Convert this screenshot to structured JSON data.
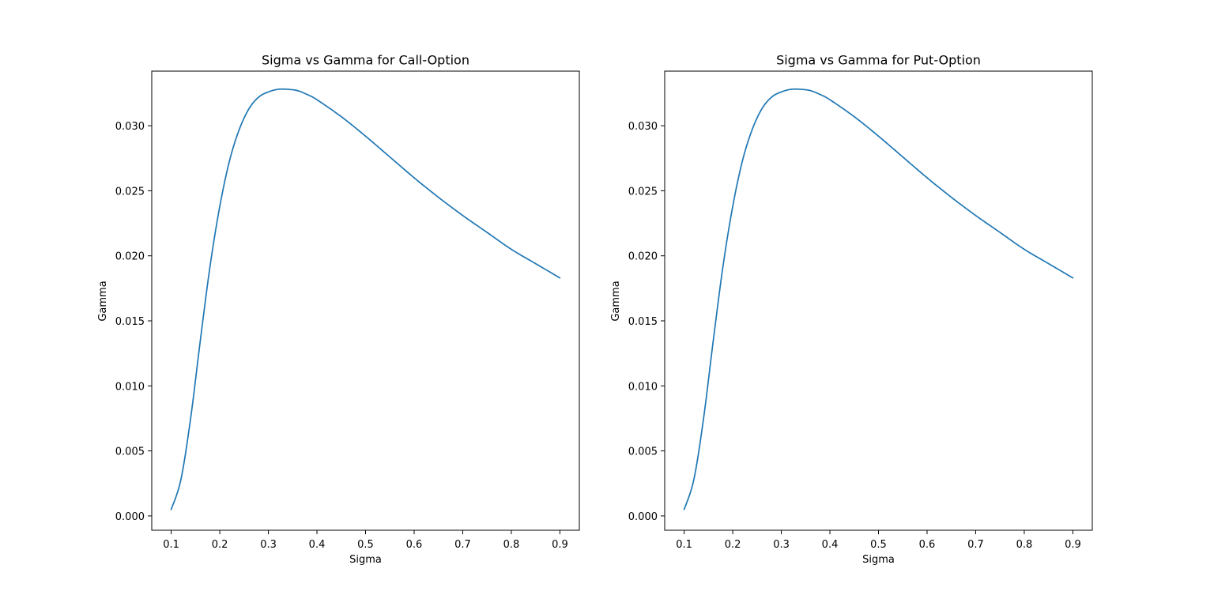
{
  "chart_data": [
    {
      "type": "line",
      "title": "Sigma vs Gamma for Call-Option",
      "xlabel": "Sigma",
      "ylabel": "Gamma",
      "xlim": [
        0.06,
        0.94
      ],
      "ylim": [
        -0.0011,
        0.0342
      ],
      "xticks": [
        0.1,
        0.2,
        0.3,
        0.4,
        0.5,
        0.6,
        0.7,
        0.8,
        0.9
      ],
      "xtick_labels": [
        "0.1",
        "0.2",
        "0.3",
        "0.4",
        "0.5",
        "0.6",
        "0.7",
        "0.8",
        "0.9"
      ],
      "yticks": [
        0.0,
        0.005,
        0.01,
        0.015,
        0.02,
        0.025,
        0.03
      ],
      "ytick_labels": [
        "0.000",
        "0.005",
        "0.010",
        "0.015",
        "0.020",
        "0.025",
        "0.030"
      ],
      "grid": false,
      "series": [
        {
          "color": "#1f77b4",
          "x": [
            0.1,
            0.12,
            0.14,
            0.16,
            0.18,
            0.2,
            0.22,
            0.24,
            0.26,
            0.28,
            0.3,
            0.32,
            0.34,
            0.36,
            0.38,
            0.4,
            0.45,
            0.5,
            0.55,
            0.6,
            0.65,
            0.7,
            0.75,
            0.8,
            0.85,
            0.9
          ],
          "y": [
            0.0005,
            0.0028,
            0.0075,
            0.0135,
            0.0192,
            0.0238,
            0.0273,
            0.0297,
            0.0313,
            0.0322,
            0.0326,
            0.0328,
            0.0328,
            0.0327,
            0.0324,
            0.032,
            0.0307,
            0.0292,
            0.0276,
            0.026,
            0.0245,
            0.0231,
            0.0218,
            0.0205,
            0.0194,
            0.0183
          ]
        }
      ]
    },
    {
      "type": "line",
      "title": "Sigma vs Gamma for Put-Option",
      "xlabel": "Sigma",
      "ylabel": "Gamma",
      "xlim": [
        0.06,
        0.94
      ],
      "ylim": [
        -0.0011,
        0.0342
      ],
      "xticks": [
        0.1,
        0.2,
        0.3,
        0.4,
        0.5,
        0.6,
        0.7,
        0.8,
        0.9
      ],
      "xtick_labels": [
        "0.1",
        "0.2",
        "0.3",
        "0.4",
        "0.5",
        "0.6",
        "0.7",
        "0.8",
        "0.9"
      ],
      "yticks": [
        0.0,
        0.005,
        0.01,
        0.015,
        0.02,
        0.025,
        0.03
      ],
      "ytick_labels": [
        "0.000",
        "0.005",
        "0.010",
        "0.015",
        "0.020",
        "0.025",
        "0.030"
      ],
      "grid": false,
      "series": [
        {
          "color": "#1f77b4",
          "x": [
            0.1,
            0.12,
            0.14,
            0.16,
            0.18,
            0.2,
            0.22,
            0.24,
            0.26,
            0.28,
            0.3,
            0.32,
            0.34,
            0.36,
            0.38,
            0.4,
            0.45,
            0.5,
            0.55,
            0.6,
            0.65,
            0.7,
            0.75,
            0.8,
            0.85,
            0.9
          ],
          "y": [
            0.0005,
            0.0028,
            0.0075,
            0.0135,
            0.0192,
            0.0238,
            0.0273,
            0.0297,
            0.0313,
            0.0322,
            0.0326,
            0.0328,
            0.0328,
            0.0327,
            0.0324,
            0.032,
            0.0307,
            0.0292,
            0.0276,
            0.026,
            0.0245,
            0.0231,
            0.0218,
            0.0205,
            0.0194,
            0.0183
          ]
        }
      ]
    }
  ]
}
